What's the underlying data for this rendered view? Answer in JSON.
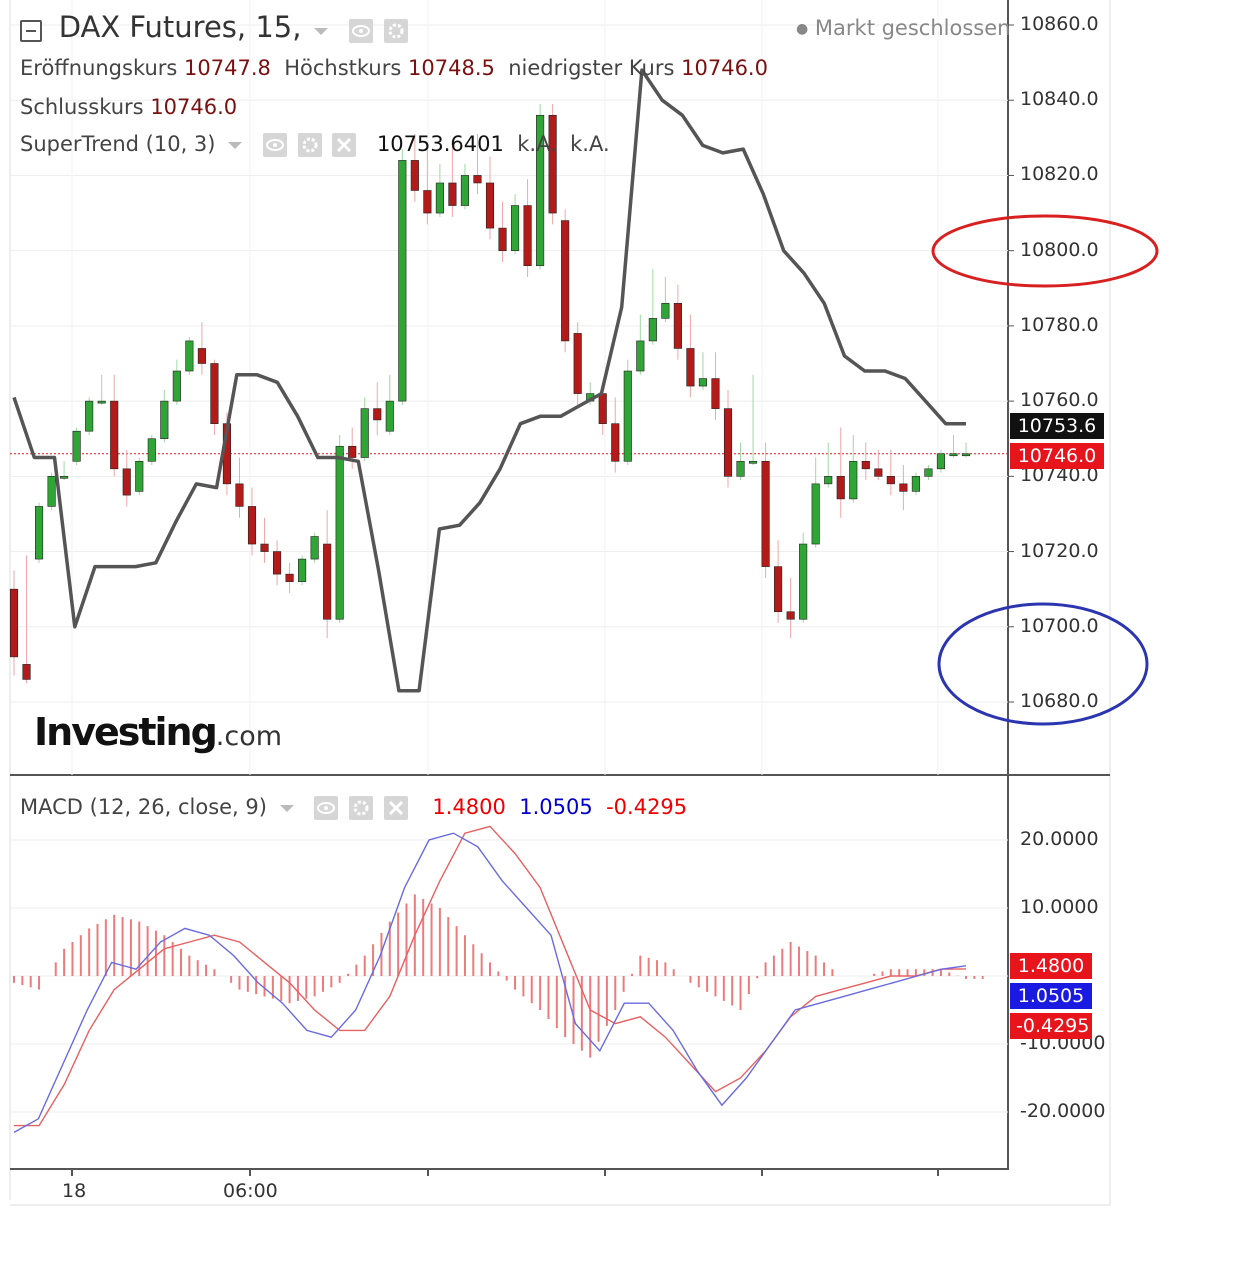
{
  "header": {
    "title": "DAX Futures, 15,",
    "market_status": "Markt geschlossen",
    "open_label": "Eröffnungskurs",
    "open": "10747.8",
    "high_label": "Höchstkurs",
    "high": "10748.5",
    "low_label": "niedrigster Kurs",
    "low": "10746.0",
    "close_label": "Schlusskurs",
    "close": "10746.0"
  },
  "supertrend": {
    "label": "SuperTrend (10, 3)",
    "value": "10753.6401",
    "na1": "k.A.",
    "na2": "k.A."
  },
  "macd": {
    "label": "MACD (12, 26, close, 9)",
    "macd": "1.4800",
    "signal": "1.0505",
    "hist": "-0.4295"
  },
  "logo": {
    "main": "Investing",
    "suffix": ".com"
  },
  "price_axis": [
    "10860.0",
    "10840.0",
    "10820.0",
    "10800.0",
    "10780.0",
    "10760.0",
    "10740.0",
    "10720.0",
    "10700.0",
    "10680.0"
  ],
  "price_tags": {
    "supertrend": "10753.6",
    "last": "10746.0"
  },
  "macd_axis": [
    "20.0000",
    "10.0000",
    "-10.0000",
    "-20.0000"
  ],
  "macd_tags": {
    "macd": "1.4800",
    "signal": "1.0505",
    "hist": "-0.4295"
  },
  "time_axis": [
    "18",
    "06:00"
  ],
  "colors": {
    "up": "#2fa535",
    "down": "#b31b1b",
    "supertrend": "#555555",
    "macd": "#6a6ae0",
    "signal": "#e86060",
    "hist": "#ee7b7b",
    "red_ellipse": "#d92020",
    "blue_ellipse": "#2b35b0"
  },
  "chart_data": [
    {
      "type": "candlestick",
      "title": "DAX Futures, 15,",
      "ylim": [
        10672,
        10865
      ],
      "candles": [
        [
          10710,
          10714,
          10692,
          10688
        ],
        [
          10690,
          10718,
          10686,
          10722
        ],
        [
          10718,
          10722,
          10732,
          10740
        ],
        [
          10732,
          10740,
          10740,
          10743
        ],
        [
          10740,
          10743,
          10740,
          10745
        ],
        [
          10744,
          10746,
          10752,
          10756
        ],
        [
          10752,
          10756,
          10760,
          10762
        ],
        [
          10760,
          10766,
          10760,
          10768
        ],
        [
          10760,
          10766,
          10742,
          10741
        ],
        [
          10742,
          10746,
          10735,
          10733
        ],
        [
          10736,
          10736,
          10744,
          10748
        ],
        [
          10744,
          10748,
          10750,
          10753
        ],
        [
          10750,
          10762,
          10760,
          10764
        ],
        [
          10760,
          10770,
          10768,
          10774
        ],
        [
          10768,
          10774,
          10776,
          10778
        ],
        [
          10774,
          10780,
          10770,
          10768
        ],
        [
          10770,
          10770,
          10754,
          10752
        ],
        [
          10754,
          10756,
          10738,
          10736
        ],
        [
          10738,
          10744,
          10732,
          10730
        ],
        [
          10732,
          10736,
          10722,
          10720
        ],
        [
          10722,
          10728,
          10720,
          10718
        ],
        [
          10720,
          10722,
          10714,
          10712
        ],
        [
          10714,
          10716,
          10712,
          10710
        ],
        [
          10712,
          10718,
          10718,
          10722
        ],
        [
          10718,
          10722,
          10724,
          10728
        ],
        [
          10722,
          10730,
          10702,
          10698
        ],
        [
          10702,
          10750,
          10748,
          10752
        ],
        [
          10748,
          10752,
          10745,
          10743
        ],
        [
          10745,
          10760,
          10758,
          10762
        ],
        [
          10758,
          10764,
          10755,
          10752
        ],
        [
          10752,
          10766,
          10760,
          10768
        ],
        [
          10760,
          10826,
          10824,
          10830
        ],
        [
          10824,
          10830,
          10816,
          10814
        ],
        [
          10816,
          10826,
          10810,
          10808
        ],
        [
          10810,
          10822,
          10818,
          10826
        ],
        [
          10818,
          10828,
          10812,
          10810
        ],
        [
          10812,
          10822,
          10820,
          10824
        ],
        [
          10820,
          10830,
          10818,
          10816
        ],
        [
          10818,
          10824,
          10806,
          10804
        ],
        [
          10806,
          10812,
          10800,
          10798
        ],
        [
          10800,
          10814,
          10812,
          10816
        ],
        [
          10812,
          10818,
          10796,
          10794
        ],
        [
          10796,
          10838,
          10836,
          10840
        ],
        [
          10836,
          10838,
          10810,
          10808
        ],
        [
          10808,
          10810,
          10776,
          10774
        ],
        [
          10778,
          10780,
          10762,
          10760
        ],
        [
          10760,
          10764,
          10762,
          10766
        ],
        [
          10762,
          10764,
          10754,
          10752
        ],
        [
          10754,
          10760,
          10744,
          10742
        ],
        [
          10744,
          10770,
          10768,
          10772
        ],
        [
          10768,
          10782,
          10776,
          10786
        ],
        [
          10776,
          10794,
          10782,
          10796
        ],
        [
          10782,
          10792,
          10786,
          10794
        ],
        [
          10786,
          10790,
          10774,
          10772
        ],
        [
          10774,
          10782,
          10764,
          10762
        ],
        [
          10764,
          10772,
          10766,
          10774
        ],
        [
          10766,
          10772,
          10758,
          10756
        ],
        [
          10758,
          10762,
          10740,
          10738
        ],
        [
          10740,
          10748,
          10744,
          10752
        ],
        [
          10744,
          10766,
          10744,
          10768
        ],
        [
          10744,
          10748,
          10716,
          10714
        ],
        [
          10716,
          10722,
          10704,
          10702
        ],
        [
          10704,
          10712,
          10702,
          10698
        ],
        [
          10702,
          10724,
          10722,
          10726
        ],
        [
          10722,
          10744,
          10738,
          10746
        ],
        [
          10738,
          10748,
          10740,
          10750
        ],
        [
          10740,
          10752,
          10734,
          10730
        ],
        [
          10734,
          10750,
          10744,
          10752
        ],
        [
          10744,
          10748,
          10742,
          10740
        ],
        [
          10742,
          10746,
          10740,
          10744
        ],
        [
          10740,
          10746,
          10738,
          10736
        ],
        [
          10738,
          10742,
          10736,
          10732
        ],
        [
          10736,
          10740,
          10740,
          10742
        ],
        [
          10740,
          10742,
          10742,
          10744
        ],
        [
          10742,
          10746,
          10746,
          10748
        ],
        [
          10746,
          10750,
          10746,
          10752
        ],
        [
          10746,
          10748,
          10746,
          10746
        ]
      ],
      "supertrend": [
        10761,
        10745,
        10745,
        10700,
        10716,
        10716,
        10716,
        10717,
        10728,
        10738,
        10737,
        10767,
        10767,
        10765,
        10756,
        10745,
        10745,
        10744,
        10715,
        10683,
        10683,
        10726,
        10727,
        10733,
        10742,
        10754,
        10756,
        10756,
        10759,
        10762,
        10785,
        10848,
        10840,
        10836,
        10828,
        10826,
        10827,
        10815,
        10800,
        10794,
        10786,
        10772,
        10768,
        10768,
        10766,
        10760,
        10754,
        10754
      ],
      "last_price": 10746.0,
      "supertrend_value": 10753.6401
    },
    {
      "type": "line",
      "title": "MACD (12, 26, close, 9)",
      "ylim": [
        -26,
        27
      ],
      "series": [
        {
          "values": [
            -23,
            -21,
            -13,
            -5,
            2,
            1,
            5,
            7,
            6,
            3,
            -1,
            -4,
            -8,
            -9,
            -5,
            3,
            13,
            20,
            21,
            19,
            14,
            10,
            6,
            -7,
            -11,
            -4,
            -4,
            -8,
            -14,
            -19,
            -15,
            -10,
            -5,
            -4,
            -3,
            -2,
            -1,
            0,
            1,
            1.5
          ]
        },
        {
          "values": [
            -22,
            -22,
            -16,
            -8,
            -2,
            1,
            4,
            5,
            6,
            5,
            2,
            -1,
            -5,
            -8,
            -8,
            -3,
            6,
            14,
            21,
            22,
            18,
            13,
            4,
            -5,
            -7,
            -6,
            -9,
            -13,
            -17,
            -15,
            -11,
            -6,
            -3,
            -2,
            -1,
            0,
            0,
            1,
            1.05
          ]
        },
        {
          "values": [
            -1,
            -2,
            4,
            7,
            9,
            8,
            6,
            3,
            1,
            -2,
            -3,
            -4,
            -3,
            -1,
            3,
            8,
            12,
            10,
            6,
            2,
            -2,
            -5,
            -9,
            -12,
            -5,
            3,
            2,
            -1,
            -3,
            -5,
            2,
            5,
            3,
            0,
            0,
            1,
            1,
            1,
            -0.43
          ]
        }
      ]
    }
  ]
}
